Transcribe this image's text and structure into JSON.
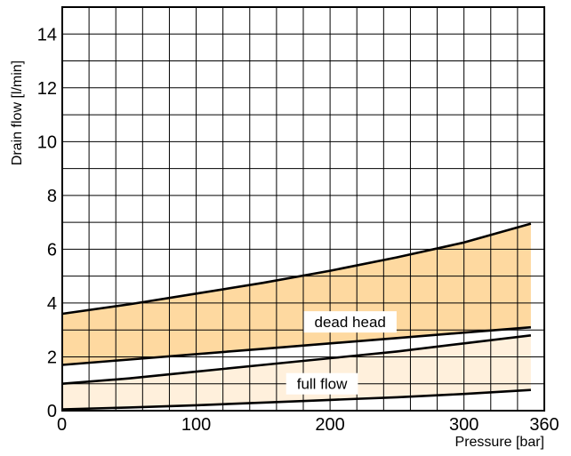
{
  "chart_data": {
    "type": "area",
    "xlabel": "Pressure [bar]",
    "ylabel": "Drain flow [l/min]",
    "xlim": [
      0,
      360
    ],
    "ylim": [
      0,
      15
    ],
    "x_ticks": [
      0,
      100,
      200,
      300,
      360
    ],
    "y_ticks": [
      0,
      2,
      4,
      6,
      8,
      10,
      12,
      14
    ],
    "grid": true,
    "grid_x_step": 20,
    "grid_y_step": 1,
    "bands": [
      {
        "label": "dead head",
        "color": "#fed9a0",
        "x": [
          0,
          50,
          100,
          150,
          200,
          250,
          300,
          350
        ],
        "upper": [
          3.6,
          3.95,
          4.35,
          4.75,
          5.2,
          5.7,
          6.25,
          6.95
        ],
        "lower": [
          1.7,
          1.9,
          2.1,
          2.3,
          2.5,
          2.7,
          2.9,
          3.1
        ]
      },
      {
        "label": "full flow",
        "color": "#fff0dc",
        "x": [
          0,
          50,
          100,
          150,
          200,
          250,
          300,
          350
        ],
        "upper": [
          1.0,
          1.2,
          1.45,
          1.7,
          1.95,
          2.2,
          2.5,
          2.8
        ],
        "lower": [
          0.05,
          0.12,
          0.2,
          0.3,
          0.4,
          0.5,
          0.62,
          0.77
        ]
      }
    ],
    "annotations": [
      {
        "text": "dead head",
        "x": 215,
        "y": 3.3
      },
      {
        "text": "full flow",
        "x": 194,
        "y": 1.0
      }
    ]
  }
}
